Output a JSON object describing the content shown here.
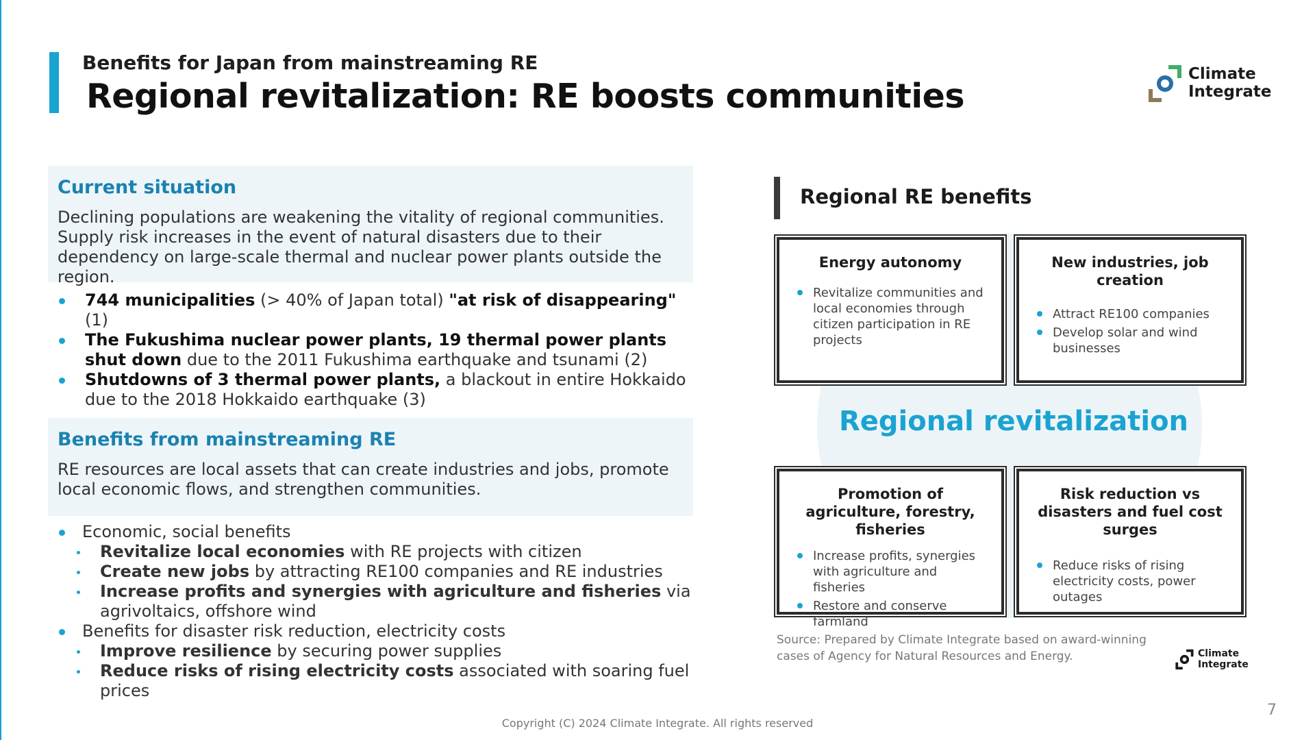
{
  "header": {
    "subtitle": "Benefits for Japan from mainstreaming RE",
    "title": "Regional revitalization: RE boosts communities",
    "logo_line1": "Climate",
    "logo_line2": "Integrate"
  },
  "current_situation": {
    "heading": "Current situation",
    "body": "Declining populations are weakening the vitality of regional communities. Supply risk increases in the event of natural disasters due to their dependency on large-scale thermal and nuclear power plants outside the region.",
    "bullets": [
      {
        "b1": "744 municipalities",
        "t1": " (> 40% of Japan total) ",
        "b2": "\"at risk of disappearing\"",
        "t2": " (1)"
      },
      {
        "b1": "The Fukushima nuclear power plants, 19 thermal power plants shut down",
        "t1": " due to the 2011 Fukushima earthquake and tsunami (2)"
      },
      {
        "b1": "Shutdowns of 3 thermal power plants,",
        "t1": " a blackout in entire Hokkaido due to the 2018 Hokkaido earthquake (3)"
      }
    ]
  },
  "benefits": {
    "heading": "Benefits from mainstreaming RE",
    "body": "RE resources are local assets that can create industries and jobs, promote local economic flows, and strengthen communities.",
    "group1": {
      "label": "Economic, social benefits",
      "items": [
        {
          "b": "Revitalize local economies",
          "t": " with RE projects with citizen"
        },
        {
          "b": "Create new jobs",
          "t": " by attracting RE100 companies and RE industries"
        },
        {
          "b": "Increase profits and synergies with agriculture and fisheries",
          "t": " via agrivoltaics, offshore wind"
        }
      ]
    },
    "group2": {
      "label": "Benefits for disaster risk reduction, electricity costs",
      "items": [
        {
          "b": "Improve resilience",
          "t": " by securing power supplies"
        },
        {
          "b": "Reduce risks of rising electricity costs",
          "t": " associated with soaring fuel prices"
        }
      ]
    }
  },
  "regional": {
    "title": "Regional RE benefits",
    "center_label": "Regional revitalization",
    "boxes": [
      {
        "title": "Energy autonomy",
        "items": [
          "Revitalize communities and local economies through citizen participation in RE projects"
        ]
      },
      {
        "title": "New industries, job creation",
        "items": [
          "Attract RE100 companies",
          "Develop solar and wind businesses"
        ]
      },
      {
        "title": "Promotion of agriculture, forestry, fisheries",
        "items": [
          "Increase profits, synergies with agriculture and fisheries",
          "Restore and conserve farmland"
        ]
      },
      {
        "title": "Risk reduction vs disasters and fuel cost surges",
        "items": [
          "Reduce risks of rising electricity costs, power outages"
        ]
      }
    ],
    "source": "Source: Prepared by Climate Integrate based on award-winning cases of Agency for Natural Resources and Energy."
  },
  "footer": {
    "copyright": "Copyright (C) 2024 Climate Integrate. All rights reserved",
    "page_number": "7"
  },
  "colors": {
    "accent": "#1aa3d1",
    "heading_blue": "#1a82b0",
    "panel_bg": "#eef5f9",
    "logo_blue": "#2a6fa8",
    "logo_green": "#3fae6a",
    "logo_brown": "#8c7b57"
  }
}
